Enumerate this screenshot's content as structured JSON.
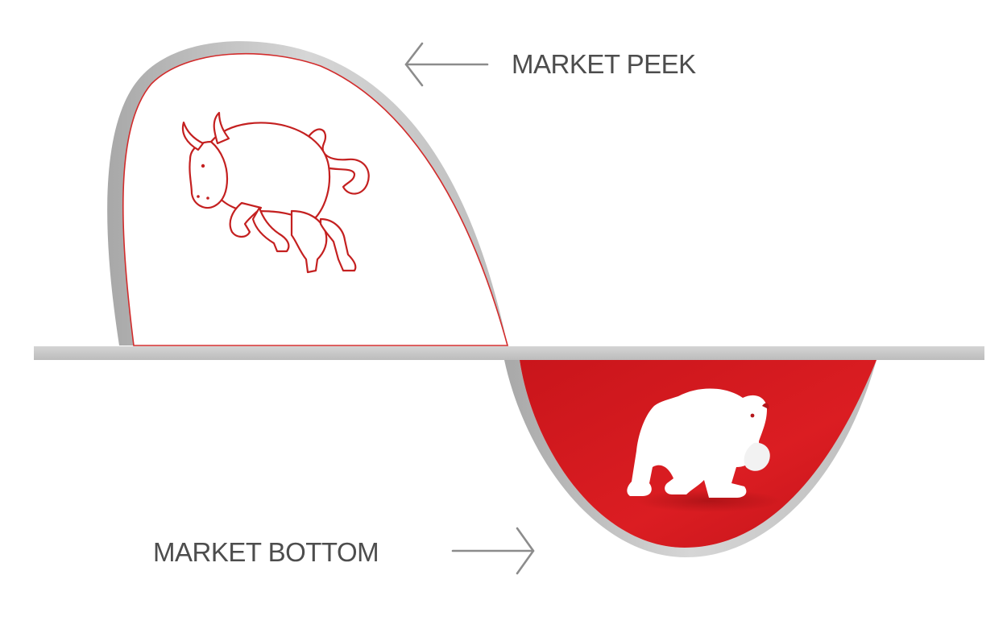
{
  "labels": {
    "peak": "MARKET PEEK",
    "bottom": "MARKET BOTTOM"
  },
  "icons": {
    "bull": "bull-icon",
    "bear": "bear-icon"
  },
  "colors": {
    "bear_fill": "#d61c21",
    "bull_outline": "#d22c2c",
    "baseline": "#c6c6c6",
    "shadow": "#bdbdbd",
    "text": "#4d4d4d",
    "arrow": "#8c8c8c"
  }
}
